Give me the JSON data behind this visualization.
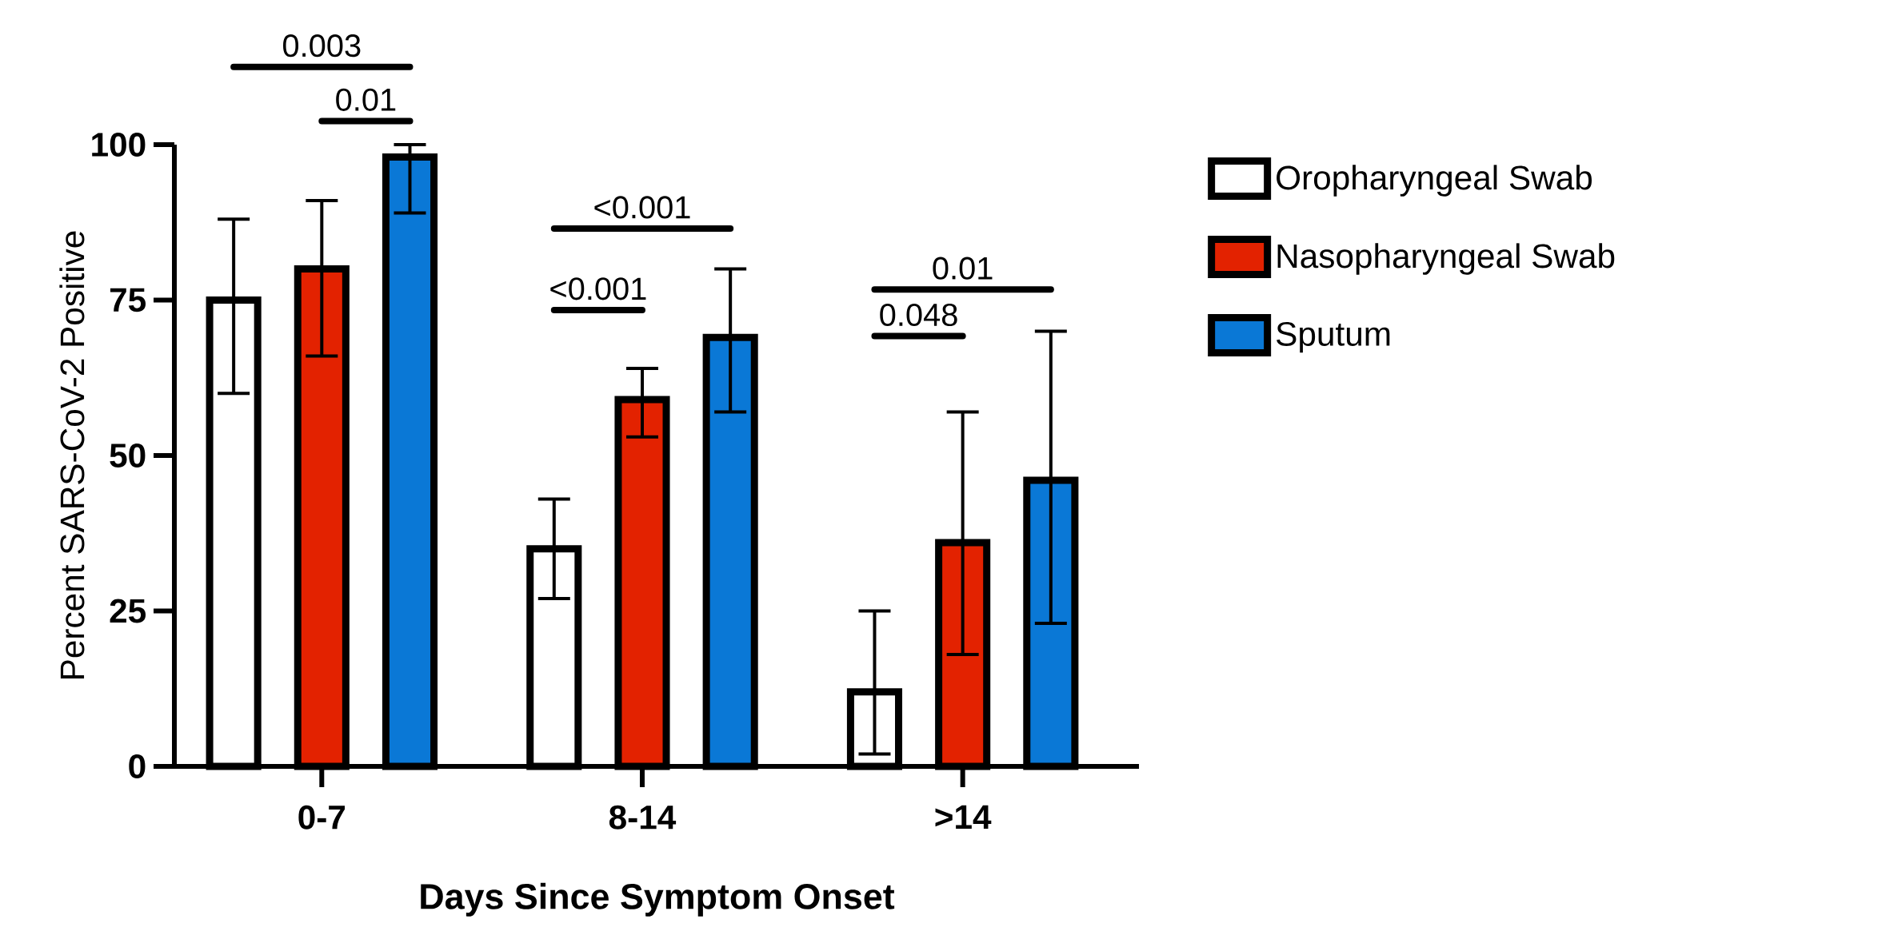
{
  "chart_data": {
    "type": "bar",
    "xlabel": "Days Since Symptom Onset",
    "ylabel": "Percent SARS-CoV-2 Positive",
    "categories": [
      "0-7",
      "8-14",
      ">14"
    ],
    "series": [
      {
        "name": "Oropharyngeal Swab",
        "color": "#ffffff",
        "values": [
          75,
          35,
          12
        ],
        "errors": [
          [
            60,
            88
          ],
          [
            27,
            43
          ],
          [
            2,
            25
          ]
        ]
      },
      {
        "name": "Nasopharyngeal Swab",
        "color": "#e32200",
        "values": [
          80,
          59,
          36
        ],
        "errors": [
          [
            66,
            91
          ],
          [
            53,
            64
          ],
          [
            18,
            57
          ]
        ]
      },
      {
        "name": "Sputum",
        "color": "#0a78d6",
        "values": [
          98,
          69,
          46
        ],
        "errors": [
          [
            89,
            100
          ],
          [
            57,
            80
          ],
          [
            23,
            70
          ]
        ]
      }
    ],
    "ylim": [
      0,
      100
    ],
    "yticks": [
      0,
      25,
      50,
      75,
      100
    ],
    "legend": "right",
    "annotations": [
      "0.003",
      "0.01",
      "<0.001",
      "<0.001",
      "0.048",
      "0.01"
    ]
  }
}
